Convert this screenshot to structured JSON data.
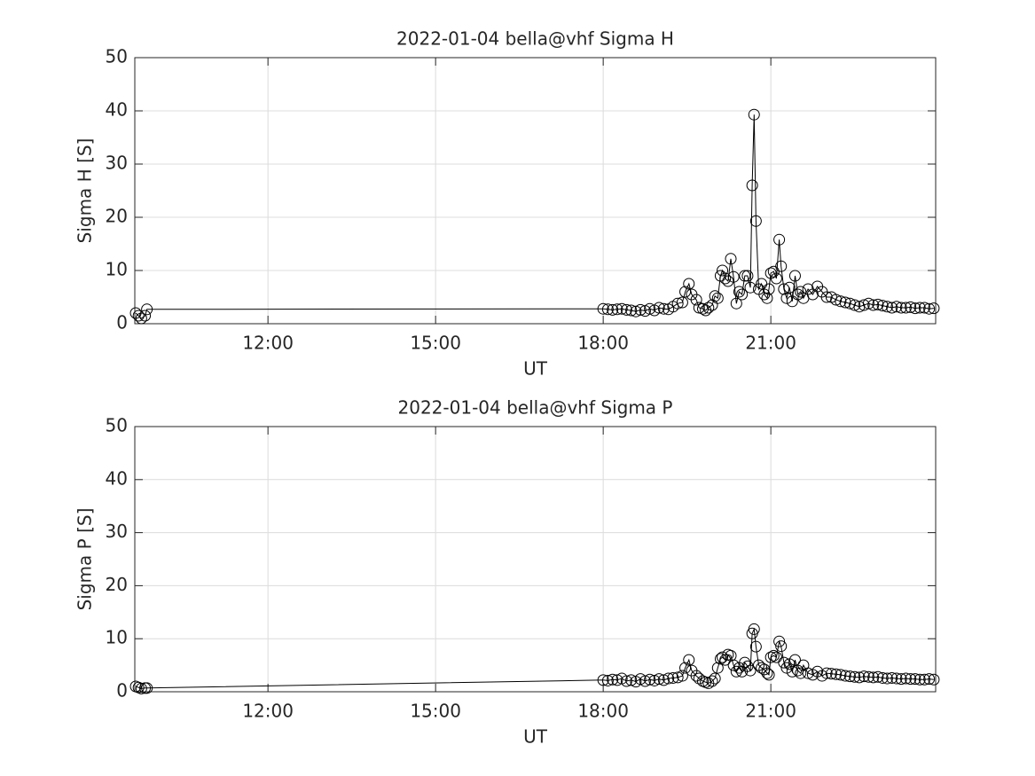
{
  "chart_data": [
    {
      "type": "line",
      "title": "2022-01-04  bella@vhf Sigma H",
      "xlabel": "UT",
      "ylabel": "Sigma H [S]",
      "x": [
        "09:38",
        "09:41",
        "09:44",
        "09:48",
        "09:50",
        "18:00",
        "18:05",
        "18:10",
        "18:15",
        "18:20",
        "18:25",
        "18:30",
        "18:35",
        "18:40",
        "18:45",
        "18:50",
        "18:55",
        "19:00",
        "19:05",
        "19:10",
        "19:15",
        "19:20",
        "19:25",
        "19:28",
        "19:32",
        "19:35",
        "19:40",
        "19:43",
        "19:47",
        "19:50",
        "19:53",
        "19:57",
        "20:00",
        "20:03",
        "20:06",
        "20:08",
        "20:11",
        "20:14",
        "20:17",
        "20:20",
        "20:23",
        "20:26",
        "20:29",
        "20:32",
        "20:35",
        "20:38",
        "20:40",
        "20:42",
        "20:44",
        "20:47",
        "20:50",
        "20:53",
        "20:56",
        "20:58",
        "21:00",
        "21:03",
        "21:06",
        "21:09",
        "21:11",
        "21:14",
        "21:17",
        "21:20",
        "21:23",
        "21:26",
        "21:29",
        "21:32",
        "21:35",
        "21:40",
        "21:45",
        "21:50",
        "21:55",
        "22:00",
        "22:05",
        "22:10",
        "22:15",
        "22:20",
        "22:25",
        "22:30",
        "22:35",
        "22:40",
        "22:45",
        "22:50",
        "22:55",
        "23:00",
        "23:05",
        "23:10",
        "23:15",
        "23:20",
        "23:25",
        "23:30",
        "23:35",
        "23:40",
        "23:45",
        "23:50",
        "23:55"
      ],
      "series": [
        {
          "color": "#000000",
          "values": [
            2.0,
            1.5,
            1.0,
            1.5,
            2.7,
            2.8,
            2.7,
            2.6,
            2.7,
            2.8,
            2.6,
            2.5,
            2.3,
            2.6,
            2.4,
            2.8,
            2.5,
            3.0,
            2.8,
            2.7,
            3.2,
            3.8,
            4.0,
            6.0,
            7.5,
            5.5,
            4.5,
            3.0,
            2.8,
            2.5,
            3.0,
            3.5,
            5.2,
            4.8,
            9.0,
            10.0,
            8.5,
            8.0,
            12.2,
            8.8,
            3.8,
            6.0,
            5.5,
            9.0,
            9.0,
            6.8,
            26.0,
            39.3,
            19.3,
            6.5,
            7.5,
            5.5,
            4.8,
            6.5,
            9.5,
            9.8,
            8.5,
            15.8,
            10.8,
            6.5,
            4.8,
            6.8,
            4.2,
            9.0,
            5.5,
            6.0,
            4.8,
            6.5,
            5.5,
            7.0,
            6.0,
            5.0,
            5.0,
            4.5,
            4.2,
            4.0,
            3.8,
            3.5,
            3.2,
            3.5,
            3.8,
            3.5,
            3.6,
            3.4,
            3.2,
            3.0,
            3.2,
            3.0,
            3.0,
            3.1,
            2.9,
            3.0,
            3.0,
            2.8,
            2.9
          ]
        }
      ],
      "xlim": [
        "09:37",
        "23:57"
      ],
      "xticks": [
        "12:00",
        "15:00",
        "18:00",
        "21:00"
      ],
      "ylim": [
        0,
        50
      ],
      "yticks": [
        0,
        10,
        20,
        30,
        40,
        50
      ],
      "grid": true
    },
    {
      "type": "line",
      "title": "2022-01-04  bella@vhf Sigma P",
      "xlabel": "UT",
      "ylabel": "Sigma P [S]",
      "x": [
        "09:38",
        "09:41",
        "09:44",
        "09:48",
        "09:50",
        "18:00",
        "18:05",
        "18:10",
        "18:15",
        "18:20",
        "18:25",
        "18:30",
        "18:35",
        "18:40",
        "18:45",
        "18:50",
        "18:55",
        "19:00",
        "19:05",
        "19:10",
        "19:15",
        "19:20",
        "19:25",
        "19:28",
        "19:32",
        "19:35",
        "19:40",
        "19:43",
        "19:47",
        "19:50",
        "19:53",
        "19:57",
        "20:00",
        "20:03",
        "20:06",
        "20:08",
        "20:11",
        "20:14",
        "20:17",
        "20:20",
        "20:23",
        "20:26",
        "20:29",
        "20:32",
        "20:35",
        "20:38",
        "20:40",
        "20:42",
        "20:44",
        "20:47",
        "20:50",
        "20:53",
        "20:56",
        "20:58",
        "21:00",
        "21:03",
        "21:06",
        "21:09",
        "21:11",
        "21:14",
        "21:17",
        "21:20",
        "21:23",
        "21:26",
        "21:29",
        "21:32",
        "21:35",
        "21:40",
        "21:45",
        "21:50",
        "21:55",
        "22:00",
        "22:05",
        "22:10",
        "22:15",
        "22:20",
        "22:25",
        "22:30",
        "22:35",
        "22:40",
        "22:45",
        "22:50",
        "22:55",
        "23:00",
        "23:05",
        "23:10",
        "23:15",
        "23:20",
        "23:25",
        "23:30",
        "23:35",
        "23:40",
        "23:45",
        "23:50",
        "23:55"
      ],
      "series": [
        {
          "color": "#000000",
          "values": [
            1.0,
            0.8,
            0.6,
            0.7,
            0.7,
            2.2,
            2.1,
            2.3,
            2.2,
            2.5,
            2.0,
            2.2,
            1.9,
            2.4,
            2.0,
            2.3,
            2.1,
            2.4,
            2.2,
            2.5,
            2.6,
            2.7,
            3.0,
            4.5,
            6.0,
            4.0,
            3.0,
            2.5,
            2.0,
            1.8,
            1.6,
            2.0,
            2.5,
            4.5,
            6.2,
            6.5,
            6.0,
            7.0,
            6.8,
            5.0,
            3.8,
            4.5,
            3.8,
            5.5,
            4.8,
            4.0,
            11.0,
            11.8,
            8.5,
            5.0,
            4.5,
            4.2,
            3.5,
            3.2,
            6.5,
            6.8,
            6.5,
            9.5,
            8.6,
            5.5,
            4.5,
            5.2,
            3.8,
            6.0,
            4.0,
            3.5,
            5.0,
            3.5,
            3.2,
            3.8,
            3.0,
            3.5,
            3.4,
            3.3,
            3.2,
            3.0,
            2.9,
            2.8,
            2.7,
            2.9,
            2.8,
            2.7,
            2.8,
            2.6,
            2.5,
            2.6,
            2.5,
            2.4,
            2.5,
            2.4,
            2.4,
            2.3,
            2.3,
            2.4,
            2.3
          ]
        }
      ],
      "xlim": [
        "09:37",
        "23:57"
      ],
      "xticks": [
        "12:00",
        "15:00",
        "18:00",
        "21:00"
      ],
      "ylim": [
        0,
        50
      ],
      "yticks": [
        0,
        10,
        20,
        30,
        40,
        50
      ],
      "grid": true
    }
  ]
}
